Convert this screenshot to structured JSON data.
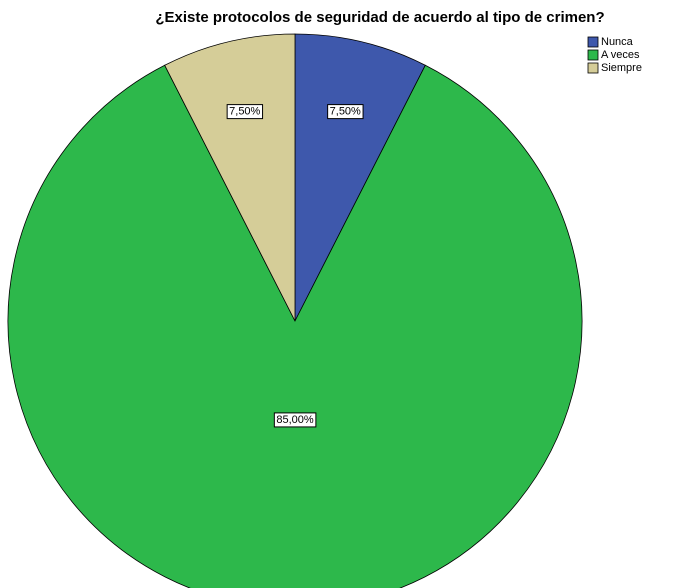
{
  "chart_data": {
    "type": "pie",
    "title": "¿Existe protocolos de seguridad de acuerdo al tipo de crimen?",
    "categories": [
      "Nunca",
      "A veces",
      "Siempre"
    ],
    "values": [
      7.5,
      85,
      7.5
    ],
    "value_labels": [
      "7,50%",
      "85,00%",
      "7,50%"
    ],
    "colors": [
      "#3e58ac",
      "#2db84b",
      "#d5cd98"
    ],
    "legend": "top-right"
  }
}
